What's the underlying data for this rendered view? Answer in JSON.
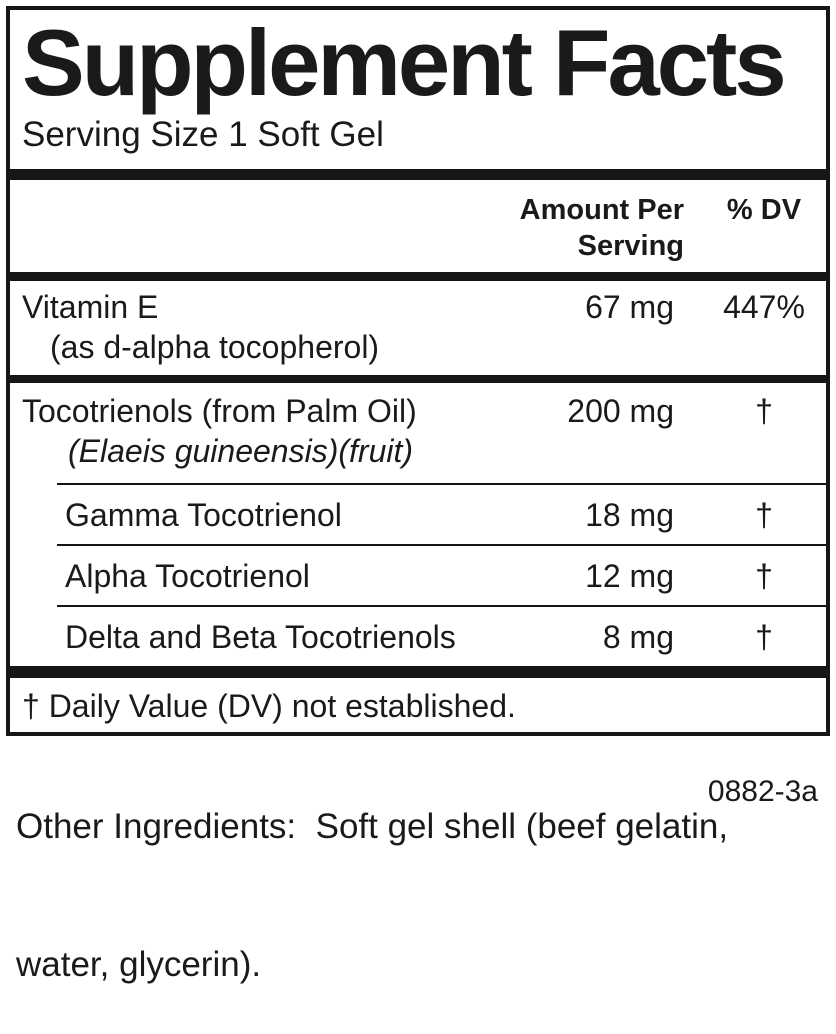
{
  "panel": {
    "title": "Supplement Facts",
    "serving_size": "Serving Size 1 Soft Gel",
    "columns": {
      "amount": "Amount Per Serving",
      "dv": "% DV"
    },
    "rows": [
      {
        "name": "Vitamin E",
        "detail": "(as d-alpha tocopherol)",
        "amount": "67 mg",
        "dv": "447%"
      },
      {
        "name": "Tocotrienols (from Palm Oil)",
        "detail": "(Elaeis guineensis)(fruit)",
        "amount": "200 mg",
        "dv": "†"
      },
      {
        "name": "Gamma Tocotrienol",
        "amount": "18 mg",
        "dv": "†"
      },
      {
        "name": "Alpha Tocotrienol",
        "amount": "12 mg",
        "dv": "†"
      },
      {
        "name": "Delta and Beta Tocotrienols",
        "amount": "8 mg",
        "dv": "†"
      }
    ],
    "footnote": "† Daily Value (DV) not established.",
    "other_ingredients": {
      "line1": "Other Ingredients:  Soft gel shell (beef gelatin,",
      "line2": "water, glycerin)."
    },
    "code": "0882-3a"
  },
  "colors": {
    "ink": "#1a1a1a",
    "rule": "#161616",
    "background": "#ffffff"
  }
}
